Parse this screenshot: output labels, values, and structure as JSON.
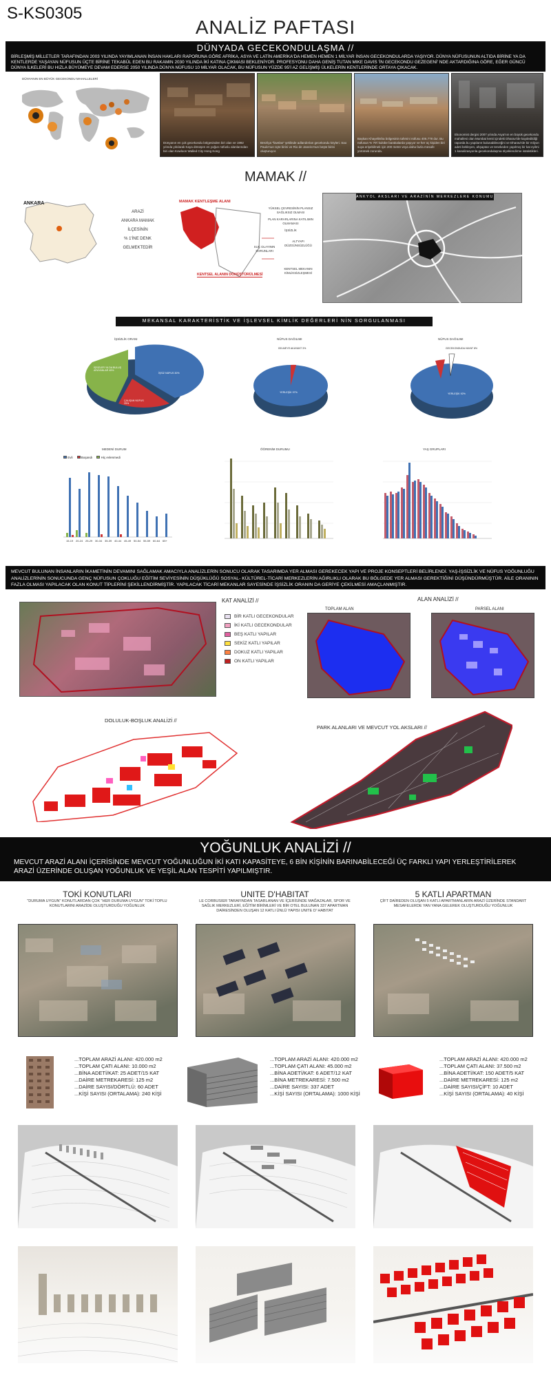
{
  "header": {
    "code": "S-KS0305",
    "title": "ANALİZ PAFTASI"
  },
  "world": {
    "title": "DÜNYADA GECEKONDULAŞMA //",
    "text": "BİRLEŞMİŞ MİLLETLER TARAFINDAN 2003 YILINDA YAYIMLANAN İNSAN HAKLARI RAPORUNA GÖRE AFRİKA, ASYA VE LATİN AMERİKA'DA HEMEN HEMEN 1 MİLYAR İNSAN GECEKONDULARDA YAŞIYOR. DÜNYA NÜFUSUNUN ALTIDA BİRİNE YA DA KENTLERDE YAŞAYAN NÜFUSUN ÜÇTE BİRİNE TEKABÜL EDEN BU RAKAMIN 2030 YILINDA İKİ KATINA ÇIKMASI BEKLENİYOR. PROFESYONU DAHA GENİŞ TUTAN MIKE DAVIS 'İN GECEKONDU GEZEGENİ' NDE AKTARDIĞINA GÖRE, EĞER GÜNCÜ DÜNYA İLKELERİ BU HIZLA BÜYÜMEYE DEVAM EDERSE 2050 YILINDA DÜNYA NÜFUSU 10 MİLYAR OLACAK, BU NÜFUSUN YÜZDE 95'İ AZ GELİŞMİŞ ÜLKELERİN KENTLERİNDE ORTAYA ÇIKACAK.",
    "map_label": "DÜNYANIN EN BÜYÜK GECEKONDU MAHALLELERİ",
    "captions": [
      "Dünyanın en çok gecekondu bölgesinden biri olan ve 1992 yılında yıkılarak Kaya dönüşen en yoğun nüfuslu alanlarından biri olan Kowloon Walled City Hong Kong",
      "Brezilya \"favelas\" şeklinde adlandırılan gecekondu köyleri. Sao Paulo'nun üçte birini ve Rio de Janeiro'nun beşte birini oluşturuyor.",
      "Başkan Khayelitsha bölgesinin tahmini nüfusu 406.778 dur. Bu nüfusun % 70'i kulübe barakalarda yaşıyor ve her üç kişiden biri suya erişebilmek için 200 metre veya daha fazla mesafe yürümek zorunda.",
      "Ekonomist dergisi 2007 yılında Asya'nın en büyük gecekondu mahallesi olan Mumbai kenti içindeki Dharavi'de kaydedildiği raporda bu yapıların bulunabileceğini ve Dharavi'de bir milyon adeti bekleyen, ahşaptan ve tenekeden yapılmış bir kat eyilmi 1 kanalizasyonla gecekondulaşma ölçeklendirme istatistikleri."
    ]
  },
  "mamak": {
    "title": "MAMAK //",
    "ankara": "ANKARA",
    "district_text": [
      "ARAZİ",
      "ANKARA MAMAK",
      "İLÇESİNİN",
      "% 1'İNE DENK",
      "GELMEKTEDİR"
    ],
    "legend1": "MAMAK KENTLEŞME ALANI",
    "flow": [
      "YÜKSEL ÇEVRESİNİN PLANSIZ SAĞLIKSIZ OLMASI",
      "PLAN KARARLARINA KATILIMIN OLMAMASI",
      "İŞSİZLİK",
      "SUÇ OLAYININ SORUNLARI",
      "ALTYAPI DÜZGÜNSÜZLÜĞÜ",
      "KENTSEL MEKANIN KİMLİKSİZLEŞMESİ"
    ],
    "renewal": "KENTSEL ALANIN DÖNÜŞTÜRÜLMESİ",
    "map_header": "ANKYOL AKSLARI VE ARAZİNİN MERKEZLERE KONUMU"
  },
  "mekansal": {
    "title": "MEKANSAL KARAKTERİSTİK VE İŞLEVSEL KİMLİK DEĞERLERİ NİN SORGULANMASI",
    "pie_titles": [
      "İŞSİZLİK ORANI",
      "NÜFUS DAĞILIMI",
      "NÜFUS DAĞILIMI"
    ],
    "pie1_labels": [
      "İŞSİZ NÜFUS 30%",
      "İŞSİZLER YA DA BULUŞ ARAYANLAR 45%",
      "ÇALIŞAN NÜFUS 25%"
    ],
    "pie2_labels": [
      "GELMEYE AKAYANT 3%",
      "YERLEŞİK 97%"
    ],
    "pie3_labels": [
      "GECEKONDUDA HAYAT 8%",
      "YERLEŞİK 92%"
    ],
    "bar_titles": [
      "MEDENİ DURUM",
      "ÖĞRENİM DURUMU",
      "YAŞ GRUPLARI"
    ],
    "bar1_legend": [
      "Evli",
      "Boşandı",
      "Hiç evlenmedi"
    ],
    "bar1_cats": [
      "15-19",
      "20-24",
      "25-29",
      "30-34",
      "35-39",
      "40-44",
      "45-49",
      "50-54",
      "55-59",
      "60-64",
      "65+"
    ]
  },
  "concept": {
    "text": "MEVCUT BULUNAN İNSANLARIN İKAMETİNİN DEVAMINI SAĞLAMAK AMACIYLA ANALİZLERİN SONUCU OLARAK TASARIMDA YER ALMASI GEREKECEK YAPI VE PROJE KONSEPTLERİ BELİRLENDİ. YAŞ-İŞSİZLİK VE NÜFUS YOĞUNLUĞU ANALİZLERİNİN SONUCUNDA GENÇ NÜFUSUN ÇOKLUĞU EĞİTİM SEVİYESİNİN DÜŞÜKLÜĞÜ SOSYAL- KÜLTÜREL-TİCARİ MERKEZLERİN AĞIRLIKLI OLARAK BU BÖLGEDE YER ALMASI GEREKTİĞİNİ DÜŞÜNDÜRMÜŞTÜR. AİLE ORANININ FAZLA OLMASI YAPILACAK OLAN KONUT TİPLERİNİ ŞEKİLLENDİRMİŞTİR. YAPILACAK TİCARİ MEKANLAR SAYESİNDE İŞSİZLİK ORANIN DA GERİYE ÇEKİLMESİ AMAÇLANMIŞTIR."
  },
  "kat": {
    "title": "KAT ANALİZİ //",
    "legend": [
      "BİR KATLI GECEKONDULAR",
      "İKİ KATLI GECEKONDULAR",
      "BEŞ KATLI YAPILAR",
      "SEKİZ KATLI YAPILAR",
      "DOKUZ KATLI YAPILAR",
      "ON KATLI YAPILAR"
    ],
    "colors": [
      "#e8e0f0",
      "#f0a0c0",
      "#e060a0",
      "#ffe040",
      "#ff8040",
      "#c02020"
    ]
  },
  "alan": {
    "title": "ALAN ANALİZİ //",
    "labels": [
      "TOPLAM ALAN",
      "PARSEL ALANI"
    ]
  },
  "doluluk": {
    "title": "DOLULUK-BOŞLUK ANALİZİ //"
  },
  "park": {
    "title": "PARK ALANLARI VE MEVCUT YOL AKSLARI //"
  },
  "yogunluk": {
    "title": "YOĞUNLUK ANALİZİ //",
    "text": "MEVCUT ARAZİ ALANI İÇERİSİNDE MEVCUT YOĞUNLUĞUN İKİ KATI KAPASİTEYE, 6 BİN KİŞİNİN BARINABİLECEĞİ ÜÇ FARKLI YAPI YERLEŞTİRİLEREK ARAZİ ÜZERİNDE OLUŞAN YOĞUNLUK VE YEŞİL ALAN TESPİTİ YAPILMIŞTIR.",
    "columns": [
      {
        "title": "TOKİ KONUTLARI",
        "sub": "\"DURUMA UYGUN\" KONUTLARDAN ÇOK \"HER DURUMA UYGUN\" TOKİ TOPLU KONUTLARINI ARAZİDE OLUŞTURDUĞU YOĞUNLUK",
        "stats": [
          "...TOPLAM ARAZİ ALANI: 420.000 m2",
          "...TOPLAM ÇATI ALANI: 10.000 m2",
          "...BİNA ADETİ/KAT: 25 ADET/15 KAT",
          "...DAİRE METREKARESİ: 125 m2",
          "...DAİRE SAYISI/DÖRTLÜ: 60 ADET",
          "...KİŞİ SAYISI (ORTALAMA): 240 KİŞİ"
        ]
      },
      {
        "title": "UNITE D'HABITAT",
        "sub": "LE CORBUSIER TARAFINDAN TASARLANAN VE İÇERİSİNDE MAĞAZALAR, SPOR VE SAĞLIK MERKEZLERİ, EĞİTİM BİRİMLERİ VE BİR OTEL BULUNAN 337 APARTMAN DAİRESİNDEN OLUŞAN 12 KATLI ÜNLÜ YAPISI UNITE D' HABITAT",
        "stats": [
          "...TOPLAM ARAZİ ALANI: 420.000 m2",
          "...TOPLAM ÇATI ALANI: 45.000 m2",
          "...BİNA ADETİ/KAT: 6 ADET/12 KAT",
          "...BİNA METREKARESİ: 7.500 m2",
          "...DAİRE SAYISI: 337 ADET",
          "...KİŞİ SAYISI (ORTALAMA): 1000 KİŞİ"
        ]
      },
      {
        "title": "5 KATLI APARTMAN",
        "sub": "ÇİFT DAİREDEN OLUŞAN 5 KATLI APARTMANLARIN ARAZİ ÜZERİNDE STANDART MESAFELERDE YAN YANA GELEREK OLUŞTURDUĞU YOĞUNLUK",
        "stats": [
          "...TOPLAM ARAZİ ALANI: 420.000 m2",
          "...TOPLAM ÇATI ALANI: 37.500 m2",
          "...BİNA ADETİ/KAT: 150 ADET/5 KAT",
          "...DAİRE METREKARESİ: 125 m2",
          "...DAİRE SAYISI/ÇİFT: 10 ADET",
          "...KİŞİ SAYISI (ORTALAMA): 40 KİŞİ"
        ]
      }
    ]
  }
}
